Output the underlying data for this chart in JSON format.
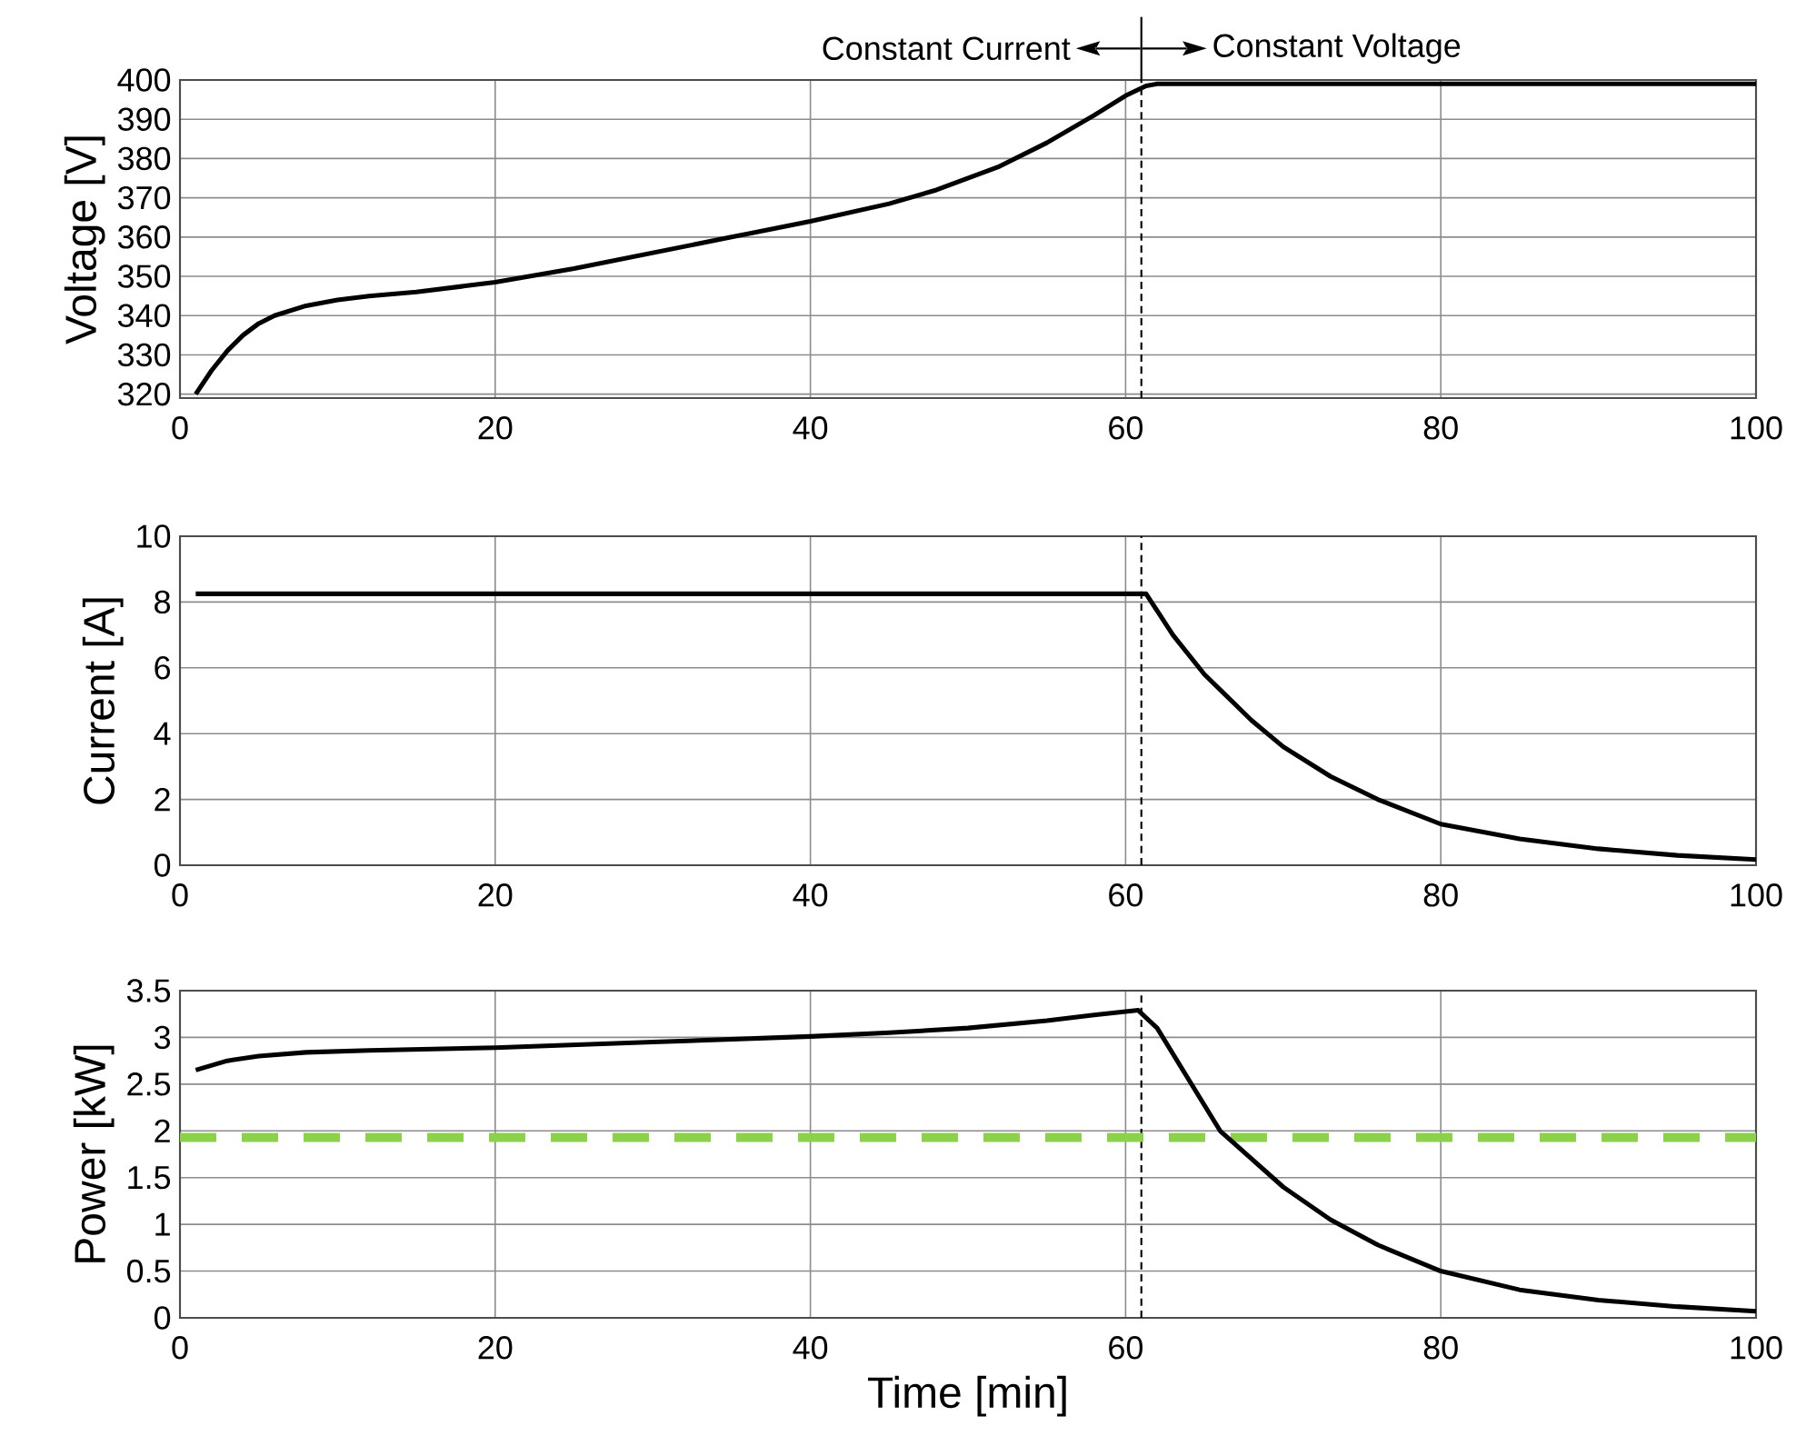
{
  "chart_data": [
    {
      "type": "line",
      "ylabel": "Voltage [V]",
      "xlim": [
        0,
        100
      ],
      "xticks": [
        0,
        20,
        40,
        60,
        80,
        100
      ],
      "ylim": [
        319,
        400
      ],
      "yticks": [
        320,
        330,
        340,
        350,
        360,
        370,
        380,
        390,
        400
      ],
      "grid": true,
      "marker": "none",
      "line_style": "solid",
      "annotations": [
        "Constant Current",
        "Constant Voltage"
      ],
      "ref_lines": [
        {
          "axis": "x",
          "value": 61,
          "line_style": "dashed",
          "color": "#000000"
        }
      ],
      "series": [
        {
          "color": "#000000",
          "x": [
            1,
            2,
            3,
            4,
            5,
            6,
            8,
            10,
            12,
            15,
            18,
            20,
            25,
            30,
            35,
            40,
            45,
            48,
            50,
            52,
            55,
            58,
            60,
            61.3,
            62,
            100
          ],
          "values": [
            320,
            326,
            331,
            335,
            338,
            340,
            342.5,
            344,
            345,
            346,
            347.5,
            348.5,
            352,
            356,
            360,
            364,
            368.5,
            372,
            375,
            378,
            384,
            391,
            396,
            398.5,
            399,
            399
          ]
        }
      ]
    },
    {
      "type": "line",
      "ylabel": "Current [A]",
      "xlim": [
        0,
        100
      ],
      "xticks": [
        0,
        20,
        40,
        60,
        80,
        100
      ],
      "ylim": [
        0,
        10
      ],
      "yticks": [
        0,
        2,
        4,
        6,
        8,
        10
      ],
      "grid": true,
      "marker": "none",
      "line_style": "solid",
      "ref_lines": [
        {
          "axis": "x",
          "value": 61,
          "line_style": "dashed",
          "color": "#000000"
        }
      ],
      "series": [
        {
          "color": "#000000",
          "x": [
            1,
            61.3,
            63,
            65,
            68,
            70,
            73,
            76,
            80,
            85,
            90,
            95,
            100
          ],
          "values": [
            8.25,
            8.25,
            7.0,
            5.8,
            4.4,
            3.6,
            2.7,
            2.0,
            1.25,
            0.8,
            0.5,
            0.3,
            0.17
          ]
        }
      ]
    },
    {
      "type": "line",
      "ylabel": "Power [kW]",
      "xlabel": "Time [min]",
      "xlim": [
        0,
        100
      ],
      "xticks": [
        0,
        20,
        40,
        60,
        80,
        100
      ],
      "ylim": [
        0,
        3.5
      ],
      "yticks": [
        0,
        0.5,
        1,
        1.5,
        2,
        2.5,
        3,
        3.5
      ],
      "grid": true,
      "marker": "none",
      "line_style": "solid",
      "ref_lines": [
        {
          "axis": "x",
          "value": 61,
          "line_style": "dashed",
          "color": "#000000"
        },
        {
          "axis": "y",
          "value": 1.93,
          "line_style": "dashed",
          "color": "#8cd14a"
        }
      ],
      "series": [
        {
          "color": "#000000",
          "x": [
            1,
            3,
            5,
            8,
            12,
            20,
            30,
            40,
            45,
            50,
            55,
            58,
            60.8,
            62,
            64,
            66,
            68,
            70,
            73,
            76,
            80,
            85,
            90,
            95,
            100
          ],
          "values": [
            2.65,
            2.75,
            2.8,
            2.84,
            2.86,
            2.89,
            2.95,
            3.01,
            3.05,
            3.1,
            3.18,
            3.24,
            3.29,
            3.1,
            2.55,
            2.0,
            1.7,
            1.4,
            1.05,
            0.78,
            0.5,
            0.3,
            0.19,
            0.12,
            0.07
          ]
        }
      ]
    }
  ]
}
